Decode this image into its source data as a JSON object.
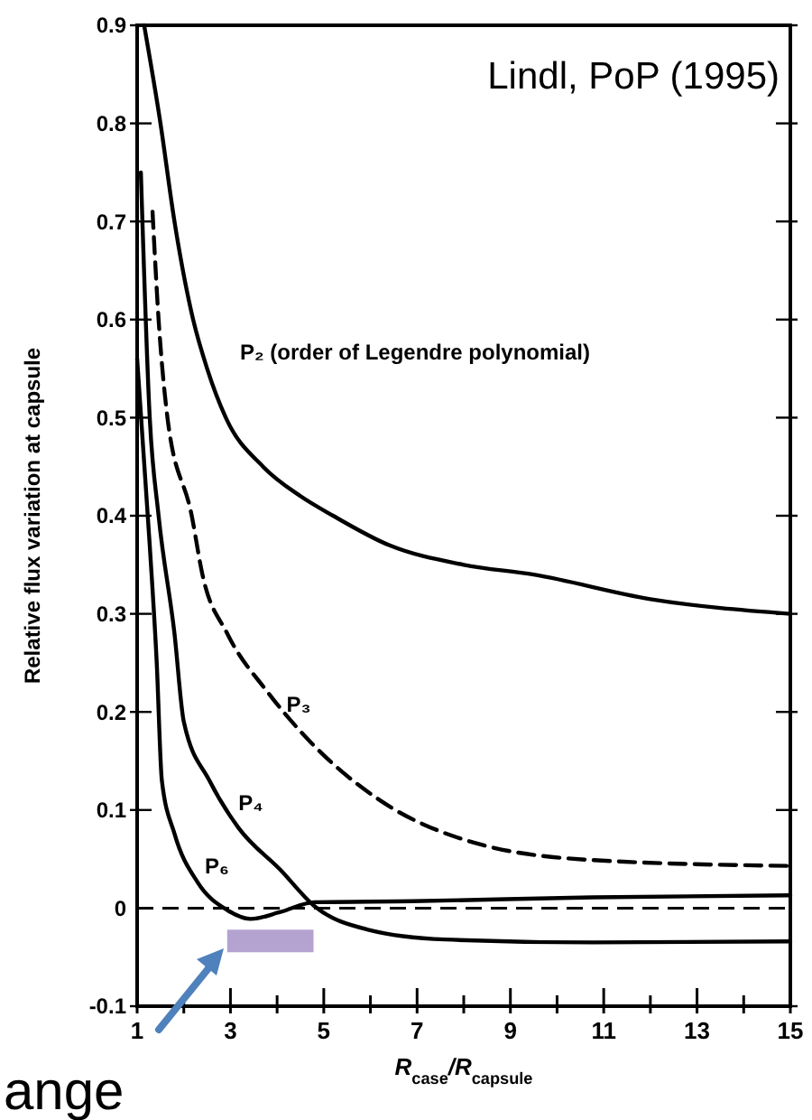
{
  "chart_data": {
    "type": "line",
    "title": "Lindl, PoP (1995)",
    "xlabel": "R$_{case}$/R$_{capsule}$",
    "ylabel": "Relative flux variation at capsule",
    "xlim": [
      1,
      15
    ],
    "ylim": [
      -0.1,
      0.9
    ],
    "xticks": [
      1,
      {
        "value": 2,
        "label": null
      },
      3,
      {
        "value": 4,
        "label": null
      },
      5,
      {
        "value": 6,
        "label": null
      },
      7,
      {
        "value": 8,
        "label": null
      },
      9,
      {
        "value": 10,
        "label": null
      },
      11,
      {
        "value": 12,
        "label": null
      },
      13,
      {
        "value": 14,
        "label": null
      },
      15
    ],
    "yticks": [
      -0.1,
      0,
      0.1,
      0.2,
      0.3,
      0.4,
      0.5,
      0.6,
      0.7,
      0.8,
      0.9
    ],
    "grid": false,
    "marker": "none",
    "series": [
      {
        "color": "#000000",
        "line_style": "solid",
        "x": [
          1.15,
          1.5,
          1.8,
          2.2,
          2.5,
          2.9,
          3.7,
          4.5,
          5.2,
          6.4,
          8,
          9.5,
          12,
          15
        ],
        "values": [
          0.9,
          0.8,
          0.7,
          0.6,
          0.55,
          0.5,
          0.45,
          0.42,
          0.4,
          0.37,
          0.35,
          0.34,
          0.315,
          0.3
        ]
      },
      {
        "color": "#000000",
        "line_style": "dashed",
        "x": [
          1.33,
          1.46,
          1.65,
          2.17,
          2.4,
          2.93,
          3.8,
          4.7,
          6.2,
          8.2,
          10.75,
          15
        ],
        "values": [
          0.71,
          0.6,
          0.5,
          0.4,
          0.34,
          0.28,
          0.22,
          0.17,
          0.11,
          0.067,
          0.049,
          0.043
        ]
      },
      {
        "color": "#000000",
        "line_style": "solid",
        "x": [
          1.08,
          1.27,
          1.46,
          1.8,
          2.0,
          2.55,
          3.17,
          4.07,
          4.8,
          5.95,
          7.6,
          10.75,
          15
        ],
        "values": [
          0.75,
          0.5,
          0.4,
          0.28,
          0.19,
          0.13,
          0.082,
          0.039,
          0.002,
          -0.022,
          -0.032,
          -0.035,
          -0.034
        ]
      },
      {
        "color": "#000000",
        "line_style": "solid",
        "x": [
          1.0,
          1.27,
          1.42,
          1.53,
          1.8,
          2.3,
          2.93,
          3.43,
          4.07,
          4.8,
          6.9,
          10.75,
          15
        ],
        "values": [
          0.56,
          0.37,
          0.25,
          0.13,
          0.076,
          0.026,
          -0.002,
          -0.011,
          -0.004,
          0.006,
          0.007,
          0.011,
          0.013
        ]
      }
    ],
    "ref_lines": [
      {
        "axis": "y",
        "value": 0,
        "line_style": "dashed",
        "color": "#000000"
      }
    ],
    "annotations": [
      "P₂ (order of Legendre polynomial)",
      {
        "text": "P₃",
        "x": 4.2,
        "y": 0.2
      },
      {
        "text": "P₄",
        "x": 3.17,
        "y": 0.1
      },
      {
        "text": "P₆",
        "x": 2.45,
        "y": 0.035
      },
      "ange"
    ]
  }
}
